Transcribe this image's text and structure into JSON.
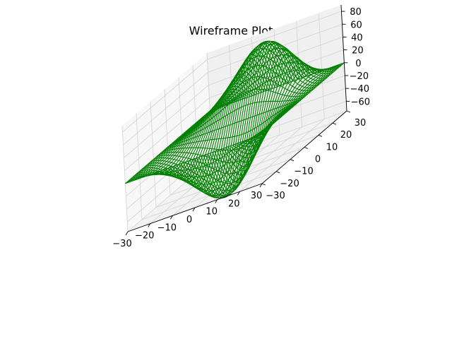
{
  "chart_data": {
    "type": "wireframe",
    "title": "Wireframe Plot",
    "xlabel": "",
    "ylabel": "",
    "zlabel": "",
    "xlim": [
      -30,
      30
    ],
    "ylim": [
      -30,
      30
    ],
    "zlim": [
      -75,
      90
    ],
    "x_ticks": [
      "−30",
      "−20",
      "−10",
      "0",
      "10",
      "20",
      "30"
    ],
    "y_ticks": [
      "−30",
      "−20",
      "−10",
      "0",
      "10",
      "20",
      "30"
    ],
    "z_ticks": [
      "−60",
      "−40",
      "−20",
      "0",
      "20",
      "40",
      "60",
      "80"
    ],
    "surface": {
      "x_range": [
        -30,
        30
      ],
      "y_range": [
        -30,
        30
      ],
      "z_min": -65,
      "z_max": 85,
      "peak": {
        "x": 10,
        "y": 15,
        "z": 85
      },
      "trough": {
        "x": -10,
        "y": -15,
        "z": -65
      }
    },
    "color": "#008000",
    "grid": true
  }
}
